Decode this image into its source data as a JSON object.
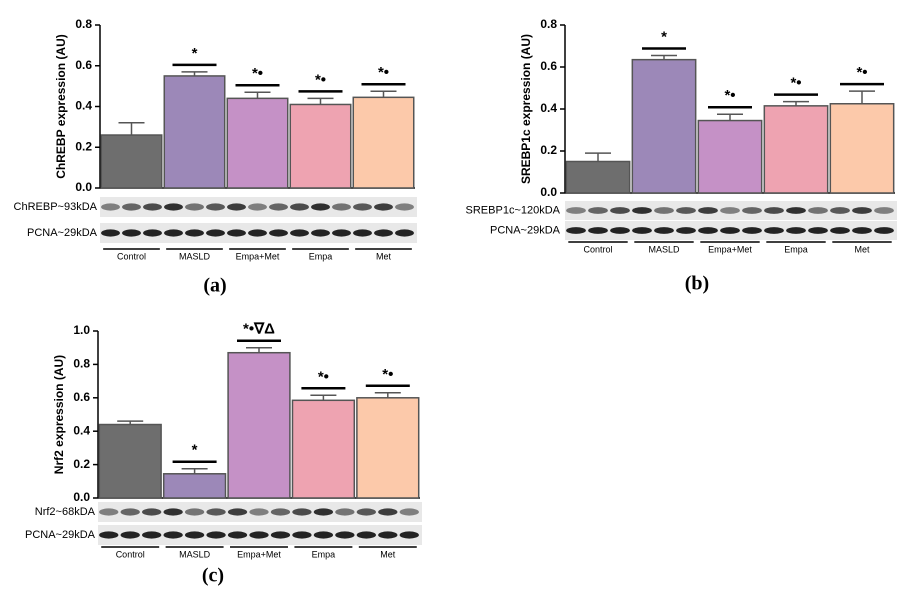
{
  "chart_data": [
    {
      "type": "bar",
      "label": "(a)",
      "ylabel": "ChREBP expression (AU)",
      "categories": [
        "Control",
        "MASLD",
        "Empa+Met",
        "Empa",
        "Met"
      ],
      "values": [
        0.26,
        0.55,
        0.44,
        0.41,
        0.445
      ],
      "errors": [
        0.06,
        0.02,
        0.03,
        0.03,
        0.03
      ],
      "colors": [
        "#6e6e6e",
        "#9c88b8",
        "#c591c6",
        "#eea3b1",
        "#fcc9aa"
      ],
      "annotations": [
        null,
        "*",
        "*•",
        "*•",
        "*•"
      ],
      "blots": [
        "ChREBP~93kDA",
        "PCNA~29kDA"
      ],
      "ylim": [
        0,
        0.8
      ],
      "yticks": [
        {
          "value": 0,
          "label": "0.0"
        },
        0.2,
        0.4,
        0.6,
        0.8
      ]
    },
    {
      "type": "bar",
      "label": "(b)",
      "ylabel": "SREBP1c expression (AU)",
      "categories": [
        "Control",
        "MASLD",
        "Empa+Met",
        "Empa",
        "Met"
      ],
      "values": [
        0.15,
        0.635,
        0.345,
        0.415,
        0.425
      ],
      "errors": [
        0.04,
        0.02,
        0.03,
        0.02,
        0.06
      ],
      "colors": [
        "#6e6e6e",
        "#9c88b8",
        "#c591c6",
        "#eea3b1",
        "#fcc9aa"
      ],
      "annotations": [
        null,
        "*",
        "*•",
        "*•",
        "*•"
      ],
      "blots": [
        "SREBP1c~120kDA",
        "PCNA~29kDA"
      ],
      "ylim": [
        0,
        0.8
      ],
      "yticks": [
        {
          "value": 0,
          "label": "0.0"
        },
        0.2,
        0.4,
        0.6,
        0.8
      ]
    },
    {
      "type": "bar",
      "label": "(c)",
      "ylabel": "Nrf2 expression (AU)",
      "categories": [
        "Control",
        "MASLD",
        "Empa+Met",
        "Empa",
        "Met"
      ],
      "values": [
        0.44,
        0.145,
        0.87,
        0.585,
        0.6
      ],
      "errors": [
        0.02,
        0.03,
        0.03,
        0.03,
        0.03
      ],
      "colors": [
        "#6e6e6e",
        "#9c88b8",
        "#c591c6",
        "#eea3b1",
        "#fcc9aa"
      ],
      "annotations": [
        null,
        "*",
        "*•∇Δ",
        "*•",
        "*•"
      ],
      "blots": [
        "Nrf2~68kDA",
        "PCNA~29kDA"
      ],
      "ylim": [
        0,
        1.0
      ],
      "yticks": [
        {
          "value": 0,
          "label": "0.0"
        },
        0.2,
        0.4,
        0.6,
        0.8,
        {
          "value": 1.0,
          "label": "1.0"
        }
      ]
    }
  ]
}
